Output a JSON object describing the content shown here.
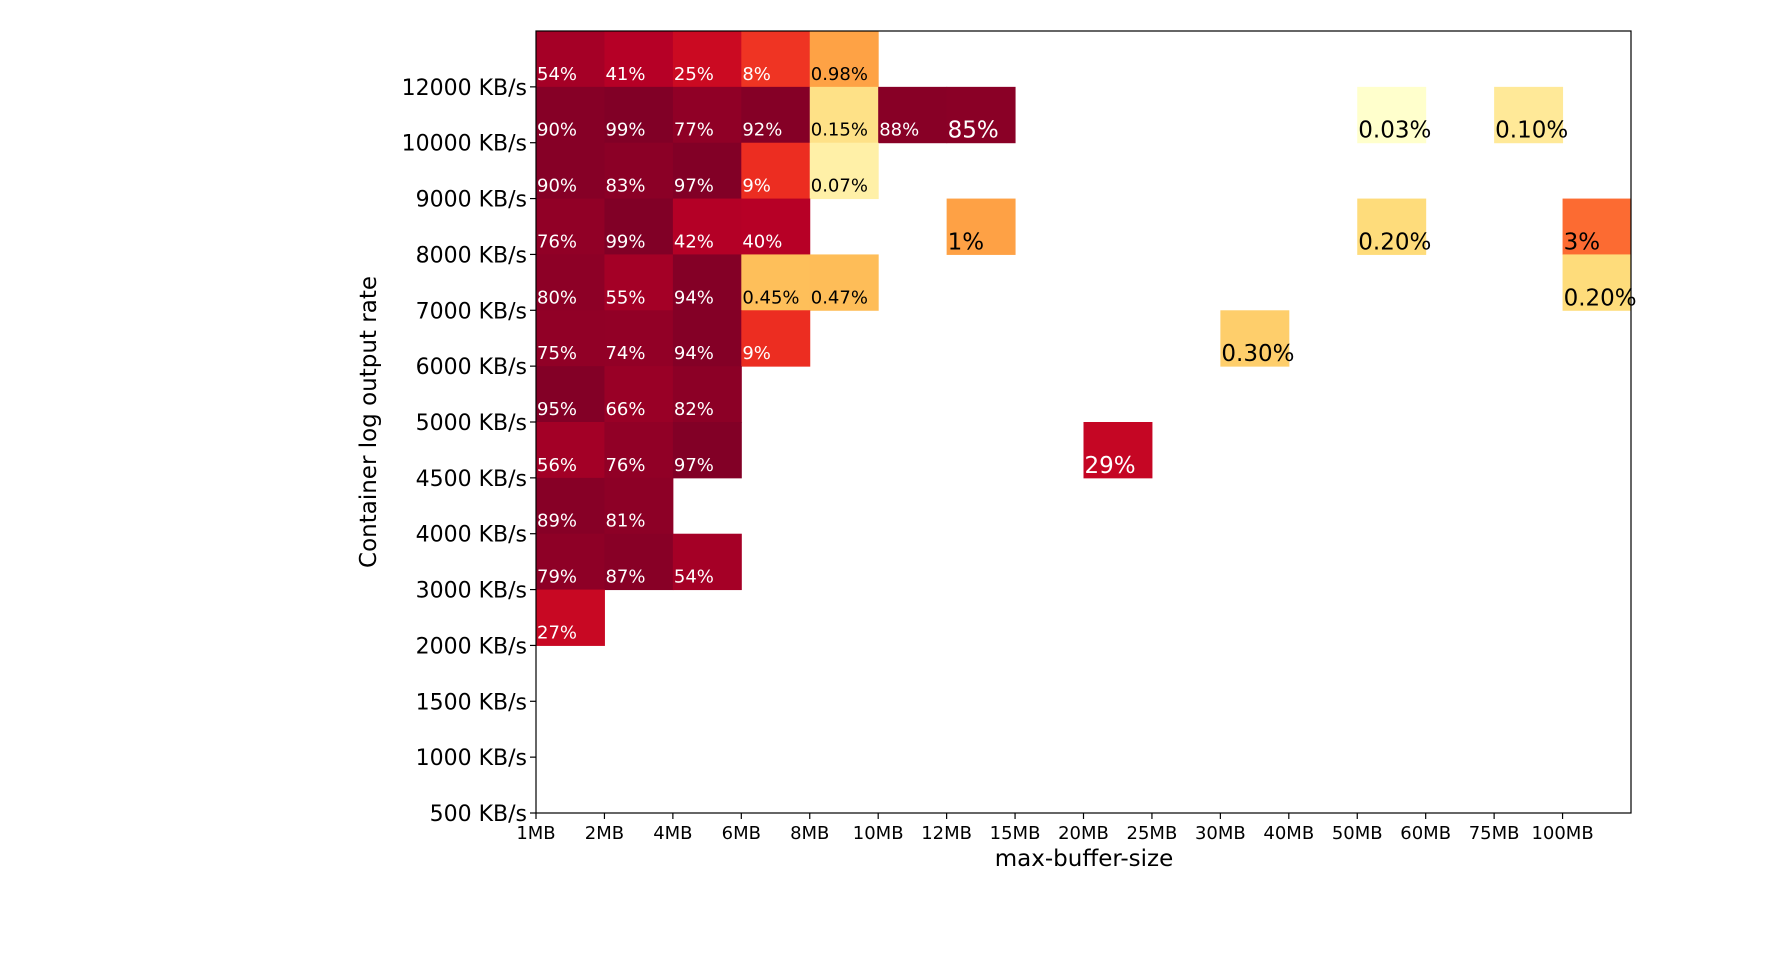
{
  "chart_data": {
    "type": "heatmap",
    "x_label": "max-buffer-size",
    "y_label": "Container log output rate",
    "categories": [
      "1MB",
      "2MB",
      "4MB",
      "6MB",
      "8MB",
      "10MB",
      "12MB",
      "15MB",
      "20MB",
      "25MB",
      "30MB",
      "40MB",
      "50MB",
      "60MB",
      "75MB",
      "100MB"
    ],
    "y_categories": [
      "12000 KB/s",
      "10000 KB/s",
      "9000 KB/s",
      "8000 KB/s",
      "7000 KB/s",
      "6000 KB/s",
      "5000 KB/s",
      "4500 KB/s",
      "4000 KB/s",
      "3000 KB/s",
      "2000 KB/s",
      "1500 KB/s",
      "1000 KB/s",
      "500 KB/s"
    ],
    "color_scale": "log",
    "clim": [
      0.03,
      100
    ],
    "colormap": [
      "#ffffcc",
      "#ffeda0",
      "#fed976",
      "#feb24c",
      "#fd8d3c",
      "#fc4e2a",
      "#e31a1c",
      "#bd0026",
      "#800026"
    ],
    "values": [
      [
        54,
        41,
        25,
        8,
        0.98,
        null,
        null,
        null,
        null,
        null,
        null,
        null,
        null,
        null,
        null,
        null
      ],
      [
        90,
        99,
        77,
        92,
        0.15,
        88,
        85,
        null,
        null,
        null,
        null,
        null,
        0.03,
        null,
        0.1,
        null
      ],
      [
        90,
        83,
        97,
        9,
        0.07,
        null,
        null,
        null,
        null,
        null,
        null,
        null,
        null,
        null,
        null,
        null
      ],
      [
        76,
        99,
        42,
        40,
        null,
        null,
        1,
        null,
        null,
        null,
        null,
        null,
        0.2,
        null,
        null,
        3
      ],
      [
        80,
        55,
        94,
        0.45,
        0.47,
        null,
        null,
        null,
        null,
        null,
        null,
        null,
        null,
        null,
        null,
        0.2
      ],
      [
        75,
        74,
        94,
        9,
        null,
        null,
        null,
        null,
        null,
        null,
        0.3,
        null,
        null,
        null,
        null,
        null
      ],
      [
        95,
        66,
        82,
        null,
        null,
        null,
        null,
        null,
        null,
        null,
        null,
        null,
        null,
        null,
        null,
        null
      ],
      [
        56,
        76,
        97,
        null,
        null,
        null,
        null,
        null,
        29,
        null,
        null,
        null,
        null,
        null,
        null,
        null
      ],
      [
        89,
        81,
        null,
        null,
        null,
        null,
        null,
        null,
        null,
        null,
        null,
        null,
        null,
        null,
        null,
        null
      ],
      [
        79,
        87,
        54,
        null,
        null,
        null,
        null,
        null,
        null,
        null,
        null,
        null,
        null,
        null,
        null,
        null
      ],
      [
        27,
        null,
        null,
        null,
        null,
        null,
        null,
        null,
        null,
        null,
        null,
        null,
        null,
        null,
        null,
        null
      ],
      [
        null,
        null,
        null,
        null,
        null,
        null,
        null,
        null,
        null,
        null,
        null,
        null,
        null,
        null,
        null,
        null
      ],
      [
        null,
        null,
        null,
        null,
        null,
        null,
        null,
        null,
        null,
        null,
        null,
        null,
        null,
        null,
        null,
        null
      ],
      [
        null,
        null,
        null,
        null,
        null,
        null,
        null,
        null,
        null,
        null,
        null,
        null,
        null,
        null,
        null,
        null
      ]
    ],
    "value_labels": [
      [
        "54%",
        "41%",
        "25%",
        "8%",
        "0.98%",
        null,
        null,
        null,
        null,
        null,
        null,
        null,
        null,
        null,
        null,
        null
      ],
      [
        "90%",
        "99%",
        "77%",
        "92%",
        "0.15%",
        "88%",
        "85%",
        null,
        null,
        null,
        null,
        null,
        "0.03%",
        null,
        "0.10%",
        null
      ],
      [
        "90%",
        "83%",
        "97%",
        "9%",
        "0.07%",
        null,
        null,
        null,
        null,
        null,
        null,
        null,
        null,
        null,
        null,
        null
      ],
      [
        "76%",
        "99%",
        "42%",
        "40%",
        null,
        null,
        "1%",
        null,
        null,
        null,
        null,
        null,
        "0.20%",
        null,
        null,
        "3%"
      ],
      [
        "80%",
        "55%",
        "94%",
        "0.45%",
        "0.47%",
        null,
        null,
        null,
        null,
        null,
        null,
        null,
        null,
        null,
        null,
        "0.20%"
      ],
      [
        "75%",
        "74%",
        "94%",
        "9%",
        null,
        null,
        null,
        null,
        null,
        null,
        "0.30%",
        null,
        null,
        null,
        null,
        null
      ],
      [
        "95%",
        "66%",
        "82%",
        null,
        null,
        null,
        null,
        null,
        null,
        null,
        null,
        null,
        null,
        null,
        null,
        null
      ],
      [
        "56%",
        "76%",
        "97%",
        null,
        null,
        null,
        null,
        null,
        "29%",
        null,
        null,
        null,
        null,
        null,
        null,
        null
      ],
      [
        "89%",
        "81%",
        null,
        null,
        null,
        null,
        null,
        null,
        null,
        null,
        null,
        null,
        null,
        null,
        null,
        null
      ],
      [
        "79%",
        "87%",
        "54%",
        null,
        null,
        null,
        null,
        null,
        null,
        null,
        null,
        null,
        null,
        null,
        null,
        null
      ],
      [
        "27%",
        null,
        null,
        null,
        null,
        null,
        null,
        null,
        null,
        null,
        null,
        null,
        null,
        null,
        null,
        null
      ],
      [
        null,
        null,
        null,
        null,
        null,
        null,
        null,
        null,
        null,
        null,
        null,
        null,
        null,
        null,
        null,
        null
      ],
      [
        null,
        null,
        null,
        null,
        null,
        null,
        null,
        null,
        null,
        null,
        null,
        null,
        null,
        null,
        null,
        null
      ],
      [
        null,
        null,
        null,
        null,
        null,
        null,
        null,
        null,
        null,
        null,
        null,
        null,
        null,
        null,
        null,
        null
      ]
    ]
  }
}
